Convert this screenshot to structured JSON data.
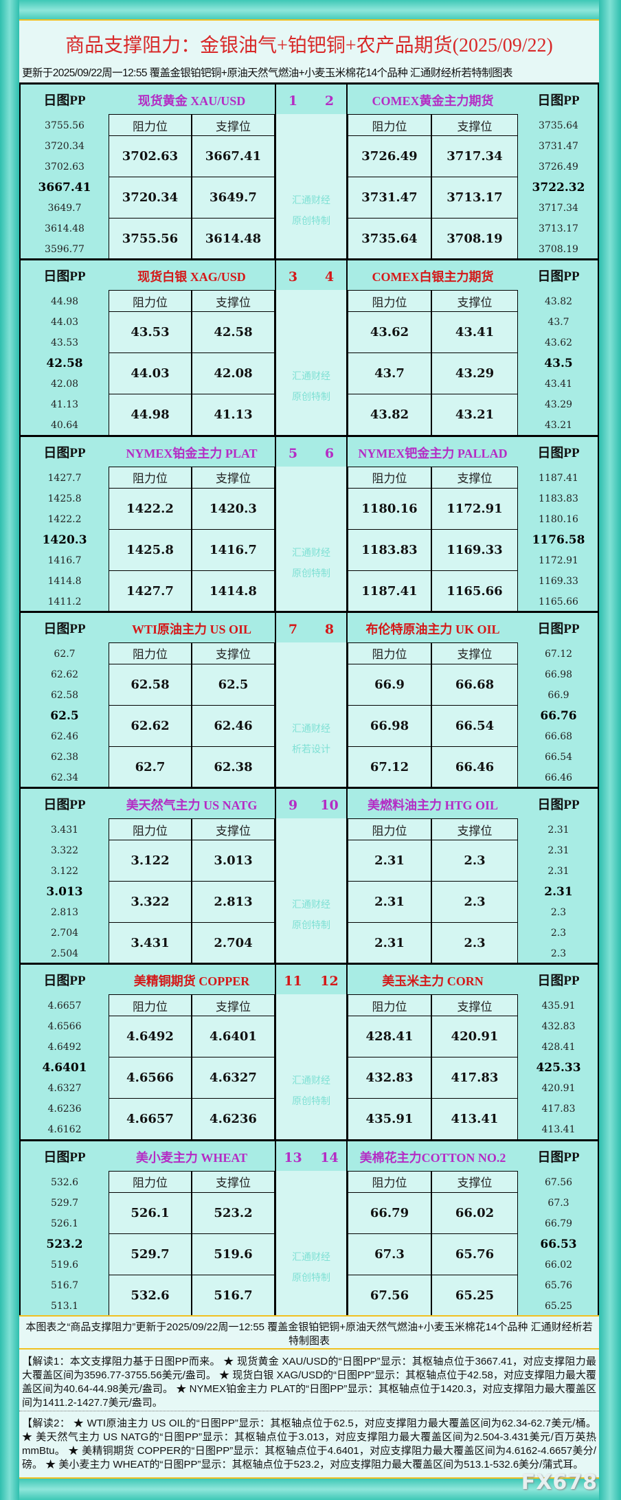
{
  "header": {
    "title": "商品支撑阻力：金银油气+铂钯铜+农产品期货(2025/09/22)",
    "subtitle": "更新于2025/09/22周一12:55  覆盖金银铂钯铜+原油天然气燃油+小麦玉米棉花14个品种  汇通财经析若特制图表"
  },
  "labels": {
    "pp": "日图PP",
    "resistance": "阻力位",
    "support": "支撑位"
  },
  "colors": {
    "purple": "#b42cc4",
    "red": "#d41818",
    "frame": "#3cc6b6",
    "pp_column": "#a8ece4",
    "cell": "#d4f6f2"
  },
  "panels": [
    {
      "watermark": [
        "汇通财经",
        "原创特制"
      ],
      "color": "purple",
      "left": {
        "title": "现货黄金 XAU/USD",
        "num": "1",
        "pp": [
          "3755.56",
          "3720.34",
          "3702.63",
          "3667.41",
          "3649.7",
          "3614.48",
          "3596.77"
        ],
        "rows": [
          [
            "3702.63",
            "3667.41"
          ],
          [
            "3720.34",
            "3649.7"
          ],
          [
            "3755.56",
            "3614.48"
          ]
        ]
      },
      "right": {
        "title": "COMEX黄金主力期货",
        "num": "2",
        "pp": [
          "3735.64",
          "3731.47",
          "3726.49",
          "3722.32",
          "3717.34",
          "3713.17",
          "3708.19"
        ],
        "rows": [
          [
            "3726.49",
            "3717.34"
          ],
          [
            "3731.47",
            "3713.17"
          ],
          [
            "3735.64",
            "3708.19"
          ]
        ]
      }
    },
    {
      "watermark": [
        "汇通财经",
        "原创特制"
      ],
      "color": "red",
      "left": {
        "title": "现货白银 XAG/USD",
        "num": "3",
        "pp": [
          "44.98",
          "44.03",
          "43.53",
          "42.58",
          "42.08",
          "41.13",
          "40.64"
        ],
        "rows": [
          [
            "43.53",
            "42.58"
          ],
          [
            "44.03",
            "42.08"
          ],
          [
            "44.98",
            "41.13"
          ]
        ]
      },
      "right": {
        "title": "COMEX白银主力期货",
        "num": "4",
        "pp": [
          "43.82",
          "43.7",
          "43.62",
          "43.5",
          "43.41",
          "43.29",
          "43.21"
        ],
        "rows": [
          [
            "43.62",
            "43.41"
          ],
          [
            "43.7",
            "43.29"
          ],
          [
            "43.82",
            "43.21"
          ]
        ]
      }
    },
    {
      "watermark": [
        "汇通财经",
        "原创特制"
      ],
      "color": "purple",
      "left": {
        "title": "NYMEX铂金主力 PLAT",
        "num": "5",
        "pp": [
          "1427.7",
          "1425.8",
          "1422.2",
          "1420.3",
          "1416.7",
          "1414.8",
          "1411.2"
        ],
        "rows": [
          [
            "1422.2",
            "1420.3"
          ],
          [
            "1425.8",
            "1416.7"
          ],
          [
            "1427.7",
            "1414.8"
          ]
        ]
      },
      "right": {
        "title": "NYMEX钯金主力 PALLAD",
        "num": "6",
        "pp": [
          "1187.41",
          "1183.83",
          "1180.16",
          "1176.58",
          "1172.91",
          "1169.33",
          "1165.66"
        ],
        "rows": [
          [
            "1180.16",
            "1172.91"
          ],
          [
            "1183.83",
            "1169.33"
          ],
          [
            "1187.41",
            "1165.66"
          ]
        ]
      }
    },
    {
      "watermark": [
        "汇通财经",
        "析若设计"
      ],
      "color": "red",
      "left": {
        "title": "WTI原油主力 US OIL",
        "num": "7",
        "pp": [
          "62.7",
          "62.62",
          "62.58",
          "62.5",
          "62.46",
          "62.38",
          "62.34"
        ],
        "rows": [
          [
            "62.58",
            "62.5"
          ],
          [
            "62.62",
            "62.46"
          ],
          [
            "62.7",
            "62.38"
          ]
        ]
      },
      "right": {
        "title": "布伦特原油主力 UK OIL",
        "num": "8",
        "pp": [
          "67.12",
          "66.98",
          "66.9",
          "66.76",
          "66.68",
          "66.54",
          "66.46"
        ],
        "rows": [
          [
            "66.9",
            "66.68"
          ],
          [
            "66.98",
            "66.54"
          ],
          [
            "67.12",
            "66.46"
          ]
        ]
      }
    },
    {
      "watermark": [
        "汇通财经",
        "原创特制"
      ],
      "color": "purple",
      "left": {
        "title": "美天然气主力 US NATG",
        "num": "9",
        "pp": [
          "3.431",
          "3.322",
          "3.122",
          "3.013",
          "2.813",
          "2.704",
          "2.504"
        ],
        "rows": [
          [
            "3.122",
            "3.013"
          ],
          [
            "3.322",
            "2.813"
          ],
          [
            "3.431",
            "2.704"
          ]
        ]
      },
      "right": {
        "title": "美燃料油主力 HTG OIL",
        "num": "10",
        "pp": [
          "2.31",
          "2.31",
          "2.31",
          "2.31",
          "2.3",
          "2.3",
          "2.3"
        ],
        "rows": [
          [
            "2.31",
            "2.3"
          ],
          [
            "2.31",
            "2.3"
          ],
          [
            "2.31",
            "2.3"
          ]
        ]
      }
    },
    {
      "watermark": [
        "汇通财经",
        "原创特制"
      ],
      "color": "red",
      "left": {
        "title": "美精铜期货 COPPER",
        "num": "11",
        "pp": [
          "4.6657",
          "4.6566",
          "4.6492",
          "4.6401",
          "4.6327",
          "4.6236",
          "4.6162"
        ],
        "rows": [
          [
            "4.6492",
            "4.6401"
          ],
          [
            "4.6566",
            "4.6327"
          ],
          [
            "4.6657",
            "4.6236"
          ]
        ]
      },
      "right": {
        "title": "美玉米主力 CORN",
        "num": "12",
        "pp": [
          "435.91",
          "432.83",
          "428.41",
          "425.33",
          "420.91",
          "417.83",
          "413.41"
        ],
        "rows": [
          [
            "428.41",
            "420.91"
          ],
          [
            "432.83",
            "417.83"
          ],
          [
            "435.91",
            "413.41"
          ]
        ]
      }
    },
    {
      "watermark": [
        "汇通财经",
        "原创特制"
      ],
      "color": "purple",
      "left": {
        "title": "美小麦主力 WHEAT",
        "num": "13",
        "pp": [
          "532.6",
          "529.7",
          "526.1",
          "523.2",
          "519.6",
          "516.7",
          "513.1"
        ],
        "rows": [
          [
            "526.1",
            "523.2"
          ],
          [
            "529.7",
            "519.6"
          ],
          [
            "532.6",
            "516.7"
          ]
        ]
      },
      "right": {
        "title": "美棉花主力COTTON NO.2",
        "num": "14",
        "pp": [
          "67.56",
          "67.3",
          "66.79",
          "66.53",
          "66.02",
          "65.76",
          "65.25"
        ],
        "rows": [
          [
            "66.79",
            "66.02"
          ],
          [
            "67.3",
            "65.76"
          ],
          [
            "67.56",
            "65.25"
          ]
        ]
      }
    }
  ],
  "footer": {
    "summary": "本图表之“商品支撑阻力”更新于2025/09/22周一12:55 覆盖金银铂钯铜+原油天然气燃油+小麦玉米棉花14个品种 汇通财经析若特制图表",
    "note1": "【解读1：本文支撑阻力基于日图PP而来。 ★ 现货黄金 XAU/USD的“日图PP”显示：其枢轴点位于3667.41，对应支撑阻力最大覆盖区间为3596.77-3755.56美元/盎司。 ★ 现货白银 XAG/USD的“日图PP”显示：其枢轴点位于42.58，对应支撑阻力最大覆盖区间为40.64-44.98美元/盎司。 ★ NYMEX铂金主力 PLAT的“日图PP”显示：其枢轴点位于1420.3，对应支撑阻力最大覆盖区间为1411.2-1427.7美元/盎司。",
    "note2": "【解读2： ★ WTI原油主力 US OIL的“日图PP”显示：其枢轴点位于62.5，对应支撑阻力最大覆盖区间为62.34-62.7美元/桶。 ★ 美天然气主力 US NATG的“日图PP”显示：其枢轴点位于3.013，对应支撑阻力最大覆盖区间为2.504-3.431美元/百万英热mmBtu。 ★ 美精铜期货 COPPER的“日图PP”显示：其枢轴点位于4.6401，对应支撑阻力最大覆盖区间为4.6162-4.6657美分/磅。 ★ 美小麦主力 WHEAT的“日图PP”显示：其枢轴点位于523.2，对应支撑阻力最大覆盖区间为513.1-532.6美分/蒲式耳。",
    "watermark": "FX678"
  }
}
